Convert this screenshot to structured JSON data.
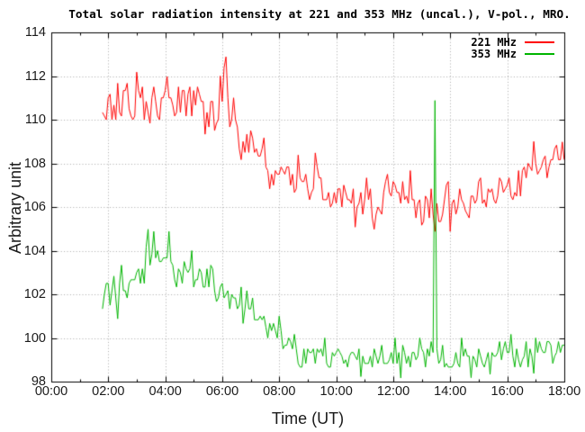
{
  "chart_data": {
    "type": "line",
    "title": "Total solar radiation intensity at 221 and 353 MHz (uncal.), V-pol., MRO.",
    "xlabel": "Time (UT)",
    "ylabel": "Arbitrary unit",
    "xlim_hours": [
      0,
      18
    ],
    "ylim": [
      98,
      114
    ],
    "grid": "dotted",
    "grid_color": "#a8a8a8",
    "border_color": "#000000",
    "x_ticks": {
      "hours": [
        0,
        2,
        4,
        6,
        8,
        10,
        12,
        14,
        16,
        18
      ],
      "labels": [
        "00:00",
        "02:00",
        "04:00",
        "06:00",
        "08:00",
        "10:00",
        "12:00",
        "14:00",
        "16:00",
        "18:00"
      ],
      "minor_hours": [
        1,
        3,
        5,
        7,
        9,
        11,
        13,
        15,
        17
      ]
    },
    "y_ticks": {
      "values": [
        98,
        100,
        102,
        104,
        106,
        108,
        110,
        112,
        114
      ],
      "labels": [
        "98",
        "100",
        "102",
        "104",
        "106",
        "108",
        "110",
        "112",
        "114"
      ]
    },
    "legend": {
      "position": "top-right",
      "entries": [
        {
          "label": "221 MHz",
          "color": "#ff0000"
        },
        {
          "label": "353 MHz",
          "color": "#00b400"
        }
      ]
    },
    "sample_minutes": 4,
    "quantize_step": 0.1667,
    "series": [
      {
        "name": "221 MHz",
        "color": "#ff0000",
        "description": "Noisy band ~110-111.5 from 01:47 to 06:00, flare peak 112.9 at 06:07, stepwise decline to ~107 by 08:00, plateau 106-107 until 15:30 with dips to ~105, rise to ~108-108.8 by 18:00.",
        "segments": [
          [
            1.78,
            2.05,
            109.8,
            111.2
          ],
          [
            2.05,
            2.9,
            109.7,
            111.5
          ],
          [
            2.9,
            3.5,
            110.0,
            111.8
          ],
          [
            3.5,
            4.65,
            109.8,
            111.5
          ],
          [
            4.65,
            5.35,
            110.0,
            111.6
          ],
          [
            5.35,
            5.9,
            109.6,
            111.2
          ],
          [
            5.9,
            6.2,
            110.2,
            112.3
          ],
          [
            6.2,
            6.55,
            109.3,
            110.8
          ],
          [
            6.55,
            7.0,
            108.4,
            109.8
          ],
          [
            7.0,
            7.5,
            107.9,
            108.9
          ],
          [
            7.5,
            8.4,
            107.0,
            108.0
          ],
          [
            8.4,
            9.45,
            106.5,
            107.6
          ],
          [
            9.45,
            10.3,
            106.0,
            107.1
          ],
          [
            10.3,
            11.6,
            105.7,
            107.0
          ],
          [
            11.6,
            12.6,
            106.1,
            107.3
          ],
          [
            12.6,
            14.6,
            105.4,
            106.9
          ],
          [
            14.6,
            15.7,
            105.8,
            107.0
          ],
          [
            15.7,
            16.35,
            106.4,
            107.7
          ],
          [
            16.35,
            16.65,
            106.6,
            107.9
          ],
          [
            16.65,
            17.25,
            106.9,
            108.5
          ],
          [
            17.25,
            18.01,
            107.4,
            108.8
          ]
        ],
        "spikes": [
          [
            2.97,
            112.2
          ],
          [
            4.07,
            112.0
          ],
          [
            6.02,
            112.4
          ],
          [
            6.13,
            112.9
          ],
          [
            8.62,
            108.4
          ],
          [
            9.22,
            108.5
          ],
          [
            10.63,
            105.1
          ],
          [
            11.3,
            105.0
          ],
          [
            13.45,
            104.9
          ],
          [
            14.0,
            104.9
          ],
          [
            17.93,
            109.0
          ]
        ]
      },
      {
        "name": "353 MHz",
        "color": "#00b400",
        "description": "Noisy band ~102-104.5 from 01:47 peaking near 03:30-04:00 (spikes to 105), stepwise decline to ~100 by 08:00, band 98.6-100 until 18:00, narrow flare spike to ~111 at 13:25.",
        "segments": [
          [
            1.78,
            2.15,
            101.3,
            102.8
          ],
          [
            2.15,
            2.8,
            101.8,
            103.3
          ],
          [
            2.8,
            3.2,
            102.3,
            103.9
          ],
          [
            3.2,
            4.05,
            102.8,
            104.4
          ],
          [
            4.05,
            4.6,
            102.5,
            104.2
          ],
          [
            4.6,
            5.2,
            102.6,
            103.8
          ],
          [
            5.2,
            5.7,
            102.2,
            103.4
          ],
          [
            5.7,
            6.4,
            101.7,
            102.7
          ],
          [
            6.4,
            7.0,
            100.9,
            102.0
          ],
          [
            7.0,
            7.5,
            100.4,
            101.3
          ],
          [
            7.5,
            8.0,
            99.9,
            100.8
          ],
          [
            8.0,
            8.6,
            99.4,
            100.2
          ],
          [
            8.6,
            15.7,
            98.6,
            99.6
          ],
          [
            15.7,
            18.01,
            98.9,
            99.9
          ]
        ],
        "spikes": [
          [
            2.3,
            100.9
          ],
          [
            3.4,
            105.0
          ],
          [
            3.6,
            104.9
          ],
          [
            4.12,
            104.9
          ],
          [
            13.42,
            110.9
          ],
          [
            10.85,
            98.25
          ],
          [
            14.7,
            98.2
          ],
          [
            16.9,
            98.4
          ]
        ]
      }
    ]
  }
}
